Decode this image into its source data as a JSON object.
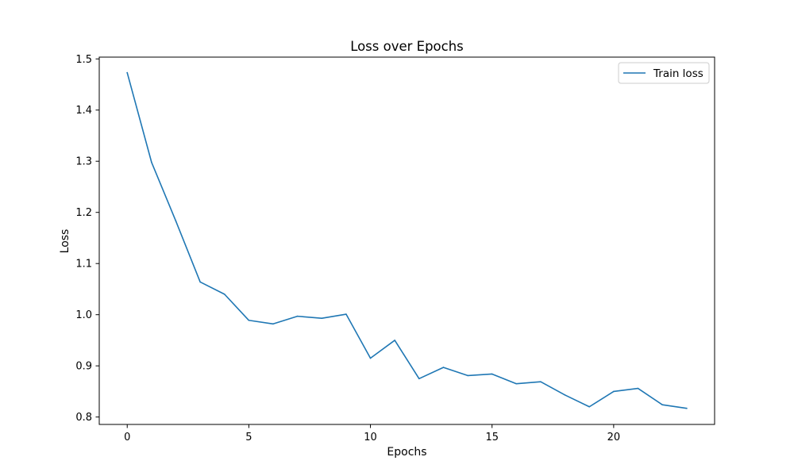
{
  "chart_data": {
    "type": "line",
    "title": "Loss over Epochs",
    "xlabel": "Epochs",
    "ylabel": "Loss",
    "xlim": [
      -1.15,
      24.15
    ],
    "ylim": [
      0.7855,
      1.5035
    ],
    "xticks": [
      0,
      5,
      10,
      15,
      20
    ],
    "xtick_labels": [
      "0",
      "5",
      "10",
      "15",
      "20"
    ],
    "yticks": [
      0.8,
      0.9,
      1.0,
      1.1,
      1.2,
      1.3,
      1.4,
      1.5
    ],
    "ytick_labels": [
      "0.8",
      "0.9",
      "1.0",
      "1.1",
      "1.2",
      "1.3",
      "1.4",
      "1.5"
    ],
    "grid": false,
    "legend_position": "top-right",
    "x": [
      0,
      1,
      2,
      3,
      4,
      5,
      6,
      7,
      8,
      9,
      10,
      11,
      12,
      13,
      14,
      15,
      16,
      17,
      18,
      19,
      20,
      21,
      22,
      23
    ],
    "series": [
      {
        "name": "Train loss",
        "color": "#1f77b4",
        "values": [
          1.473,
          1.298,
          1.183,
          1.064,
          1.04,
          0.989,
          0.982,
          0.997,
          0.993,
          1.001,
          0.915,
          0.95,
          0.875,
          0.897,
          0.881,
          0.884,
          0.865,
          0.869,
          0.843,
          0.82,
          0.85,
          0.856,
          0.824,
          0.817
        ]
      }
    ]
  }
}
